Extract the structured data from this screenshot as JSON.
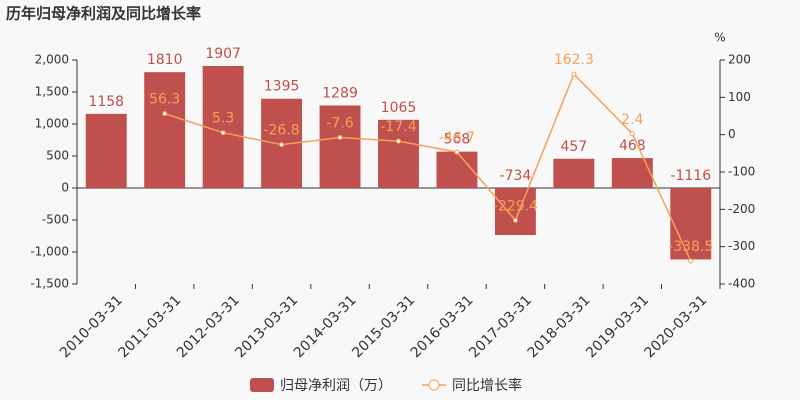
{
  "chart_data": {
    "type": "bar-line",
    "title": "历年归母净利润及同比增长率",
    "y2_label": "%",
    "categories": [
      "2010-03-31",
      "2011-03-31",
      "2012-03-31",
      "2013-03-31",
      "2014-03-31",
      "2015-03-31",
      "2016-03-31",
      "2017-03-31",
      "2018-03-31",
      "2019-03-31",
      "2020-03-31"
    ],
    "series": [
      {
        "name": "归母净利润（万）",
        "type": "bar",
        "color": "#c0504d",
        "values": [
          1158,
          1810,
          1907,
          1395,
          1289,
          1065,
          568,
          -734,
          457,
          468,
          -1116
        ]
      },
      {
        "name": "同比增长率",
        "type": "line",
        "axis": "y2",
        "color": "#f5a05a",
        "values": [
          null,
          56.3,
          5.3,
          -26.8,
          -7.6,
          -17.4,
          -46.7,
          -229.4,
          162.3,
          2.4,
          -338.5
        ]
      }
    ],
    "ylim": [
      -1500,
      2000
    ],
    "yticks": [
      {
        "value": -1500,
        "label": "-1,500"
      },
      {
        "value": -1000,
        "label": "-1,000"
      },
      -500,
      0,
      500,
      {
        "value": 1000,
        "label": "1,000"
      },
      {
        "value": 1500,
        "label": "1,500"
      },
      {
        "value": 2000,
        "label": "2,000"
      }
    ],
    "y2lim": [
      -400,
      200
    ],
    "y2ticks": [
      -400,
      -300,
      -200,
      -100,
      0,
      100,
      200
    ],
    "grid": false
  }
}
